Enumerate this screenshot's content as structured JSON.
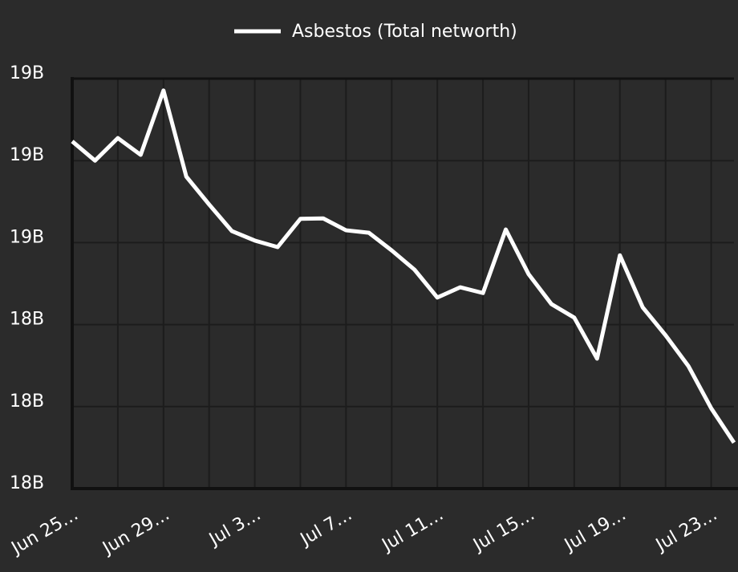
{
  "chart_data": {
    "type": "line",
    "categories": [
      "Jun 25…",
      null,
      null,
      null,
      "Jun 29…",
      null,
      null,
      null,
      "Jul 3…",
      null,
      null,
      null,
      "Jul 7…",
      null,
      null,
      null,
      "Jul 11…",
      null,
      null,
      null,
      "Jul 15…",
      null,
      null,
      null,
      "Jul 19…",
      null,
      null,
      null,
      "Jul 23…",
      null
    ],
    "series": [
      {
        "name": "Asbestos (Total networth)",
        "color": "#ffffff",
        "values": [
          18.847,
          18.8,
          18.855,
          18.814,
          18.971,
          18.761,
          18.693,
          18.628,
          18.605,
          18.589,
          18.658,
          18.659,
          18.63,
          18.624,
          18.581,
          18.534,
          18.466,
          18.491,
          18.477,
          18.632,
          18.523,
          18.45,
          18.417,
          18.317,
          18.569,
          18.442,
          18.374,
          18.299,
          18.196,
          18.112
        ]
      }
    ],
    "ylim": [
      18,
      19
    ],
    "yticks": [
      {
        "value": 18,
        "label": "18B"
      },
      {
        "value": 18.2,
        "label": "18B"
      },
      {
        "value": 18.4,
        "label": "18B"
      },
      {
        "value": 18.6,
        "label": "19B"
      },
      {
        "value": 18.8,
        "label": "19B"
      },
      {
        "value": 19,
        "label": "19B"
      }
    ],
    "grid": true
  }
}
